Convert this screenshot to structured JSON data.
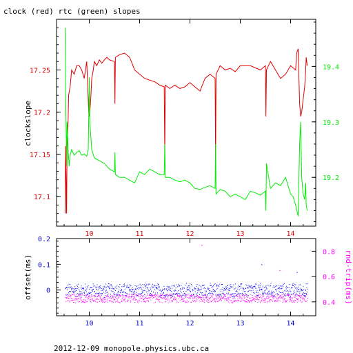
{
  "chart_data": [
    {
      "type": "line",
      "title": "clock (red) rtc (green) slopes",
      "ylabel": "clockslope",
      "xlim": [
        9.35,
        14.5
      ],
      "ylim": [
        17.065,
        17.31
      ],
      "y2lim": [
        19.112,
        19.485
      ],
      "x_ticks": [
        "10",
        "11",
        "12",
        "13",
        "14"
      ],
      "y_ticks": [
        "17.1",
        "17.15",
        "17.2",
        "17.25"
      ],
      "y2_ticks": [
        "19.2",
        "19.3",
        "19.4"
      ],
      "colors": {
        "clock": "#dd0000",
        "rtc": "#00ee00",
        "axis": "#000000",
        "left_ticks": "#dd0000",
        "right_ticks": "#00ee00",
        "x_ticks": "#dd0000"
      },
      "series": [
        {
          "key": "clock",
          "axis": "left",
          "x": [
            9.52,
            9.53,
            9.55,
            9.56,
            9.58,
            9.59,
            9.62,
            9.65,
            9.7,
            9.75,
            9.8,
            9.85,
            9.9,
            9.95,
            9.99,
            10.0,
            10.01,
            10.03,
            10.05,
            10.08,
            10.1,
            10.15,
            10.2,
            10.25,
            10.3,
            10.35,
            10.4,
            10.5,
            10.51,
            10.52,
            10.6,
            10.7,
            10.8,
            10.85,
            10.9,
            11.0,
            11.1,
            11.2,
            11.3,
            11.4,
            11.49,
            11.5,
            11.51,
            11.6,
            11.7,
            11.8,
            11.9,
            12.0,
            12.1,
            12.2,
            12.3,
            12.4,
            12.5,
            12.51,
            12.52,
            12.6,
            12.7,
            12.8,
            12.9,
            13.0,
            13.2,
            13.4,
            13.5,
            13.51,
            13.52,
            13.6,
            13.7,
            13.8,
            13.9,
            14.0,
            14.1,
            14.12,
            14.15,
            14.18,
            14.2,
            14.22,
            14.25,
            14.28,
            14.3,
            14.31,
            14.33
          ],
          "y": [
            17.08,
            17.16,
            17.08,
            17.16,
            17.19,
            17.22,
            17.23,
            17.25,
            17.245,
            17.255,
            17.255,
            17.25,
            17.24,
            17.26,
            17.2,
            17.195,
            17.2,
            17.215,
            17.24,
            17.25,
            17.26,
            17.255,
            17.262,
            17.258,
            17.262,
            17.265,
            17.262,
            17.26,
            17.21,
            17.265,
            17.268,
            17.27,
            17.265,
            17.258,
            17.25,
            17.245,
            17.24,
            17.238,
            17.236,
            17.232,
            17.23,
            17.15,
            17.232,
            17.228,
            17.232,
            17.228,
            17.23,
            17.235,
            17.23,
            17.225,
            17.24,
            17.245,
            17.24,
            17.145,
            17.245,
            17.255,
            17.25,
            17.252,
            17.248,
            17.255,
            17.255,
            17.25,
            17.255,
            17.195,
            17.25,
            17.26,
            17.25,
            17.24,
            17.245,
            17.255,
            17.25,
            17.27,
            17.275,
            17.21,
            17.195,
            17.2,
            17.215,
            17.23,
            17.25,
            17.265,
            17.255
          ]
        },
        {
          "key": "rtc",
          "axis": "right",
          "x": [
            9.52,
            9.53,
            9.55,
            9.56,
            9.58,
            9.6,
            9.62,
            9.65,
            9.7,
            9.75,
            9.8,
            9.85,
            9.9,
            9.95,
            9.98,
            10.0,
            10.01,
            10.05,
            10.1,
            10.2,
            10.3,
            10.4,
            10.5,
            10.51,
            10.52,
            10.6,
            10.7,
            10.8,
            10.9,
            11.0,
            11.1,
            11.2,
            11.3,
            11.4,
            11.49,
            11.5,
            11.51,
            11.6,
            11.7,
            11.8,
            11.9,
            12.0,
            12.1,
            12.2,
            12.3,
            12.4,
            12.5,
            12.51,
            12.52,
            12.6,
            12.7,
            12.8,
            12.9,
            13.0,
            13.1,
            13.2,
            13.3,
            13.4,
            13.5,
            13.51,
            13.52,
            13.6,
            13.7,
            13.8,
            13.9,
            14.0,
            14.05,
            14.1,
            14.15,
            14.18,
            14.2,
            14.22,
            14.25,
            14.28,
            14.3,
            14.31,
            14.33
          ],
          "y": [
            19.47,
            19.36,
            19.22,
            19.3,
            19.25,
            19.22,
            19.24,
            19.25,
            19.24,
            19.245,
            19.248,
            19.24,
            19.242,
            19.238,
            19.25,
            19.38,
            19.3,
            19.25,
            19.235,
            19.23,
            19.225,
            19.215,
            19.21,
            19.245,
            19.205,
            19.2,
            19.2,
            19.195,
            19.19,
            19.21,
            19.205,
            19.215,
            19.21,
            19.205,
            19.205,
            19.26,
            19.2,
            19.2,
            19.195,
            19.192,
            19.195,
            19.19,
            19.18,
            19.178,
            19.182,
            19.185,
            19.18,
            19.26,
            19.17,
            19.178,
            19.175,
            19.165,
            19.17,
            19.165,
            19.16,
            19.175,
            19.172,
            19.168,
            19.175,
            19.14,
            19.225,
            19.18,
            19.19,
            19.185,
            19.2,
            19.17,
            19.165,
            19.15,
            19.13,
            19.26,
            19.3,
            19.2,
            19.17,
            19.16,
            19.19,
            19.15,
            19.14
          ]
        }
      ]
    },
    {
      "type": "scatter",
      "ylabel": "offset(ms)",
      "y2label": "rnd-trip(ms)",
      "footer": "2012-12-09 monopole.physics.ubc.ca",
      "xlim": [
        9.35,
        14.5
      ],
      "ylim": [
        -0.1,
        0.2
      ],
      "y2lim": [
        0.29,
        0.9
      ],
      "x_ticks": [
        "10",
        "11",
        "12",
        "13",
        "14"
      ],
      "y_ticks": [
        "0",
        "0.1",
        "0.2"
      ],
      "y2_ticks": [
        "0.4",
        "0.6",
        "0.8"
      ],
      "colors": {
        "offset": "#0000ff",
        "roundtrip": "#ff00ff",
        "left_ticks": "#0000cc",
        "right_ticks": "#ff00ff",
        "x_ticks": "#0000cc"
      },
      "series": [
        {
          "key": "offset",
          "axis": "left",
          "x_range": [
            9.52,
            14.33
          ],
          "center": 0.0,
          "spread": 0.03
        },
        {
          "key": "roundtrip",
          "axis": "right",
          "x_range": [
            9.52,
            14.33
          ],
          "center": 0.43,
          "spread": 0.04
        }
      ],
      "outliers": [
        {
          "series": "roundtrip",
          "x": 12.23,
          "y": 0.85
        },
        {
          "series": "roundtrip",
          "x": 13.78,
          "y": 0.65
        },
        {
          "series": "offset",
          "x": 13.42,
          "y": 0.1
        },
        {
          "series": "offset",
          "x": 14.12,
          "y": 0.07
        }
      ]
    }
  ]
}
